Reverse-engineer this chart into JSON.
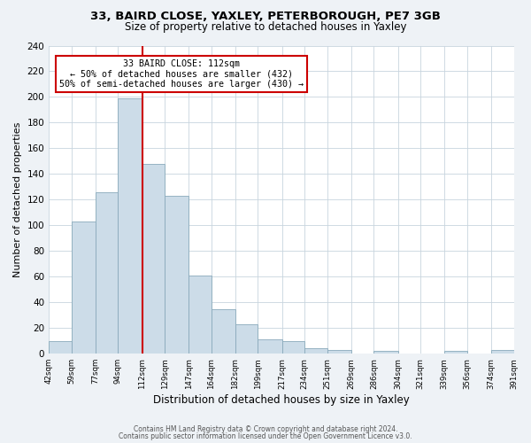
{
  "title1": "33, BAIRD CLOSE, YAXLEY, PETERBOROUGH, PE7 3GB",
  "title2": "Size of property relative to detached houses in Yaxley",
  "xlabel": "Distribution of detached houses by size in Yaxley",
  "ylabel": "Number of detached properties",
  "bin_edges": [
    42,
    59,
    77,
    94,
    112,
    129,
    147,
    164,
    182,
    199,
    217,
    234,
    251,
    269,
    286,
    304,
    321,
    339,
    356,
    374,
    391
  ],
  "bin_counts": [
    10,
    103,
    126,
    199,
    148,
    123,
    61,
    35,
    23,
    11,
    10,
    4,
    3,
    0,
    2,
    0,
    0,
    2,
    0,
    3
  ],
  "bar_color": "#ccdce8",
  "bar_edge_color": "#8aaabb",
  "vline_x": 112,
  "vline_color": "#cc0000",
  "annotation_text": "33 BAIRD CLOSE: 112sqm\n← 50% of detached houses are smaller (432)\n50% of semi-detached houses are larger (430) →",
  "annotation_box_color": "#ffffff",
  "annotation_box_edge_color": "#cc0000",
  "ylim": [
    0,
    240
  ],
  "yticks": [
    0,
    20,
    40,
    60,
    80,
    100,
    120,
    140,
    160,
    180,
    200,
    220,
    240
  ],
  "tick_labels": [
    "42sqm",
    "59sqm",
    "77sqm",
    "94sqm",
    "112sqm",
    "129sqm",
    "147sqm",
    "164sqm",
    "182sqm",
    "199sqm",
    "217sqm",
    "234sqm",
    "251sqm",
    "269sqm",
    "286sqm",
    "304sqm",
    "321sqm",
    "339sqm",
    "356sqm",
    "374sqm",
    "391sqm"
  ],
  "footer1": "Contains HM Land Registry data © Crown copyright and database right 2024.",
  "footer2": "Contains public sector information licensed under the Open Government Licence v3.0.",
  "bg_color": "#eef2f6",
  "plot_bg_color": "#ffffff",
  "title1_fontsize": 9.5,
  "title2_fontsize": 8.5
}
